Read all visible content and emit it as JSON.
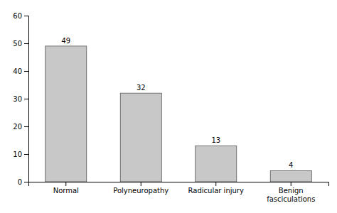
{
  "chart_data": {
    "type": "bar",
    "categories": [
      "Normal",
      "Polyneuropathy",
      "Radicular injury",
      "Benign\nfasciculations"
    ],
    "values": [
      49,
      32,
      13,
      4
    ],
    "color": "#c8c8c8",
    "data_labels": true,
    "ylim": [
      0,
      60
    ],
    "yticks": [
      0,
      10,
      20,
      30,
      40,
      50,
      60
    ],
    "grid": false
  }
}
